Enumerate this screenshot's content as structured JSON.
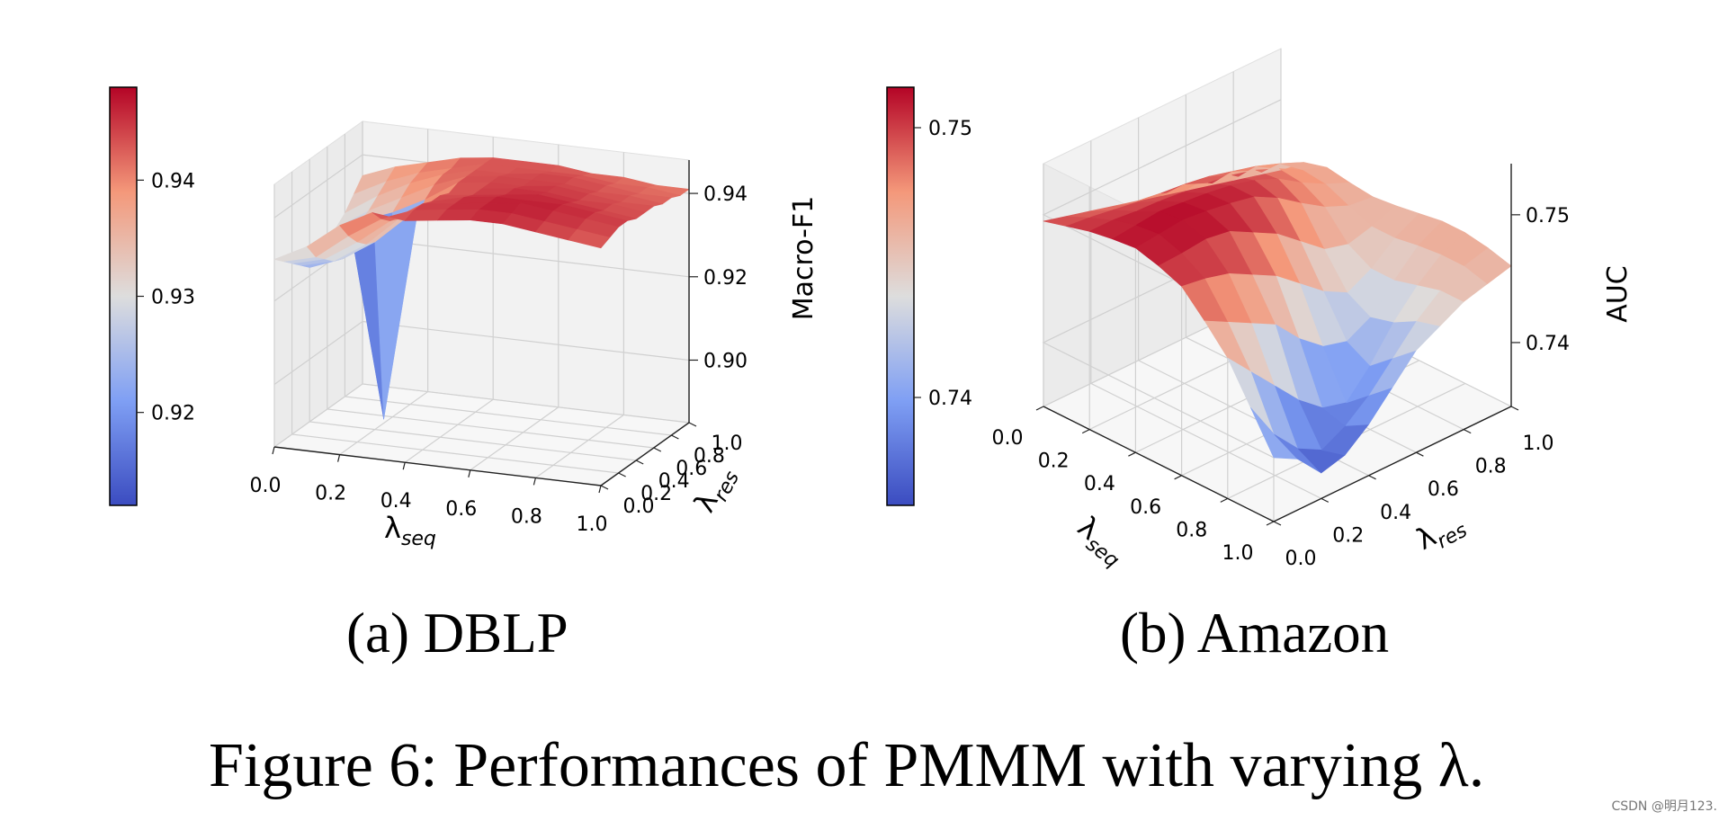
{
  "panels": [
    {
      "id": "dblp",
      "caption": "(a) DBLP",
      "zlabel": "Macro-F1",
      "xlabel": {
        "main": "λ",
        "sub": "seq"
      },
      "ylabel": {
        "main": "λ",
        "sub": "res"
      },
      "xticks": [
        "0.0",
        "0.2",
        "0.4",
        "0.6",
        "0.8",
        "1.0"
      ],
      "yticks": [
        "0.0",
        "0.2",
        "0.4",
        "0.6",
        "0.8",
        "1.0"
      ],
      "zticks": [
        "0.90",
        "0.92",
        "0.94"
      ],
      "colorbar_ticks": [
        "0.92",
        "0.93",
        "0.94"
      ]
    },
    {
      "id": "amazon",
      "caption": "(b) Amazon",
      "zlabel": "AUC",
      "xlabel": {
        "main": "λ",
        "sub": "seq"
      },
      "ylabel": {
        "main": "λ",
        "sub": "res"
      },
      "xticks": [
        "0.0",
        "0.2",
        "0.4",
        "0.6",
        "0.8",
        "1.0"
      ],
      "yticks": [
        "0.0",
        "0.2",
        "0.4",
        "0.6",
        "0.8",
        "1.0"
      ],
      "zticks": [
        "0.74",
        "0.75"
      ],
      "colorbar_ticks": [
        "0.74",
        "0.75"
      ]
    }
  ],
  "figure_caption": "Figure 6: Performances of PMMM with varying λ.",
  "watermark": "CSDN @明月123.",
  "chart_data": [
    {
      "type": "surface3d",
      "title": "(a) DBLP",
      "xlabel": "λ_seq",
      "ylabel": "λ_res",
      "zlabel": "Macro-F1",
      "x": [
        0.0,
        0.1,
        0.2,
        0.3,
        0.4,
        0.5,
        0.6,
        0.7,
        0.8,
        0.9,
        1.0
      ],
      "y": [
        0.0,
        0.1,
        0.2,
        0.3,
        0.4,
        0.5,
        0.6,
        0.7,
        0.8,
        0.9,
        1.0
      ],
      "zlim": [
        0.885,
        0.948
      ],
      "colorbar_range": [
        0.912,
        0.948
      ],
      "colormap": "coolwarm",
      "z_rows_by_y": [
        [
          0.93,
          0.934,
          0.94,
          0.944,
          0.943,
          0.944,
          0.945,
          0.945,
          0.944,
          0.943,
          0.942
        ],
        [
          0.928,
          0.93,
          0.936,
          0.941,
          0.944,
          0.945,
          0.946,
          0.946,
          0.945,
          0.944,
          0.943
        ],
        [
          0.926,
          0.928,
          0.933,
          0.939,
          0.944,
          0.945,
          0.946,
          0.947,
          0.946,
          0.945,
          0.944
        ],
        [
          0.924,
          0.926,
          0.931,
          0.938,
          0.943,
          0.945,
          0.946,
          0.946,
          0.946,
          0.945,
          0.944
        ],
        [
          0.922,
          0.925,
          0.93,
          0.937,
          0.943,
          0.944,
          0.945,
          0.946,
          0.945,
          0.944,
          0.943
        ],
        [
          0.923,
          0.93,
          0.886,
          0.935,
          0.942,
          0.944,
          0.945,
          0.945,
          0.944,
          0.944,
          0.943
        ],
        [
          0.925,
          0.931,
          0.934,
          0.938,
          0.943,
          0.944,
          0.944,
          0.945,
          0.944,
          0.943,
          0.943
        ],
        [
          0.927,
          0.932,
          0.936,
          0.94,
          0.943,
          0.944,
          0.944,
          0.944,
          0.943,
          0.943,
          0.942
        ],
        [
          0.929,
          0.934,
          0.938,
          0.941,
          0.943,
          0.943,
          0.944,
          0.944,
          0.943,
          0.942,
          0.942
        ],
        [
          0.932,
          0.936,
          0.939,
          0.941,
          0.943,
          0.943,
          0.943,
          0.943,
          0.942,
          0.942,
          0.941
        ],
        [
          0.935,
          0.938,
          0.94,
          0.942,
          0.943,
          0.943,
          0.943,
          0.942,
          0.942,
          0.941,
          0.941
        ]
      ]
    },
    {
      "type": "surface3d",
      "title": "(b) Amazon",
      "xlabel": "λ_seq",
      "ylabel": "λ_res",
      "zlabel": "AUC",
      "x": [
        0.0,
        0.1,
        0.2,
        0.3,
        0.4,
        0.5,
        0.6,
        0.7,
        0.8,
        0.9,
        1.0
      ],
      "y": [
        0.0,
        0.1,
        0.2,
        0.3,
        0.4,
        0.5,
        0.6,
        0.7,
        0.8,
        0.9,
        1.0
      ],
      "zlim": [
        0.735,
        0.754
      ],
      "colorbar_range": [
        0.736,
        0.7515
      ],
      "colormap": "coolwarm",
      "z_rows_by_y": [
        [
          0.7495,
          0.75,
          0.7505,
          0.7508,
          0.751,
          0.7505,
          0.7498,
          0.748,
          0.746,
          0.743,
          0.74
        ],
        [
          0.749,
          0.7498,
          0.7505,
          0.751,
          0.7512,
          0.7506,
          0.7495,
          0.747,
          0.744,
          0.74,
          0.739
        ],
        [
          0.7485,
          0.7495,
          0.7503,
          0.7512,
          0.7514,
          0.7508,
          0.749,
          0.746,
          0.742,
          0.738,
          0.737
        ],
        [
          0.748,
          0.7492,
          0.7502,
          0.751,
          0.7512,
          0.7505,
          0.748,
          0.745,
          0.74,
          0.737,
          0.7375
        ],
        [
          0.7475,
          0.749,
          0.75,
          0.7508,
          0.7509,
          0.7495,
          0.747,
          0.743,
          0.7385,
          0.738,
          0.739
        ],
        [
          0.747,
          0.7488,
          0.7498,
          0.7505,
          0.7505,
          0.7485,
          0.7455,
          0.7415,
          0.738,
          0.7395,
          0.741
        ],
        [
          0.7465,
          0.7485,
          0.7495,
          0.75,
          0.7495,
          0.747,
          0.744,
          0.741,
          0.74,
          0.7415,
          0.743
        ],
        [
          0.746,
          0.748,
          0.749,
          0.7492,
          0.7482,
          0.7455,
          0.743,
          0.742,
          0.7425,
          0.7435,
          0.744
        ],
        [
          0.7455,
          0.7475,
          0.7482,
          0.748,
          0.747,
          0.745,
          0.744,
          0.744,
          0.7445,
          0.745,
          0.745
        ],
        [
          0.745,
          0.7468,
          0.7472,
          0.747,
          0.7462,
          0.7455,
          0.7455,
          0.7458,
          0.746,
          0.746,
          0.7455
        ],
        [
          0.7445,
          0.746,
          0.7465,
          0.7462,
          0.746,
          0.7462,
          0.7465,
          0.7468,
          0.7468,
          0.7465,
          0.746
        ]
      ]
    }
  ]
}
